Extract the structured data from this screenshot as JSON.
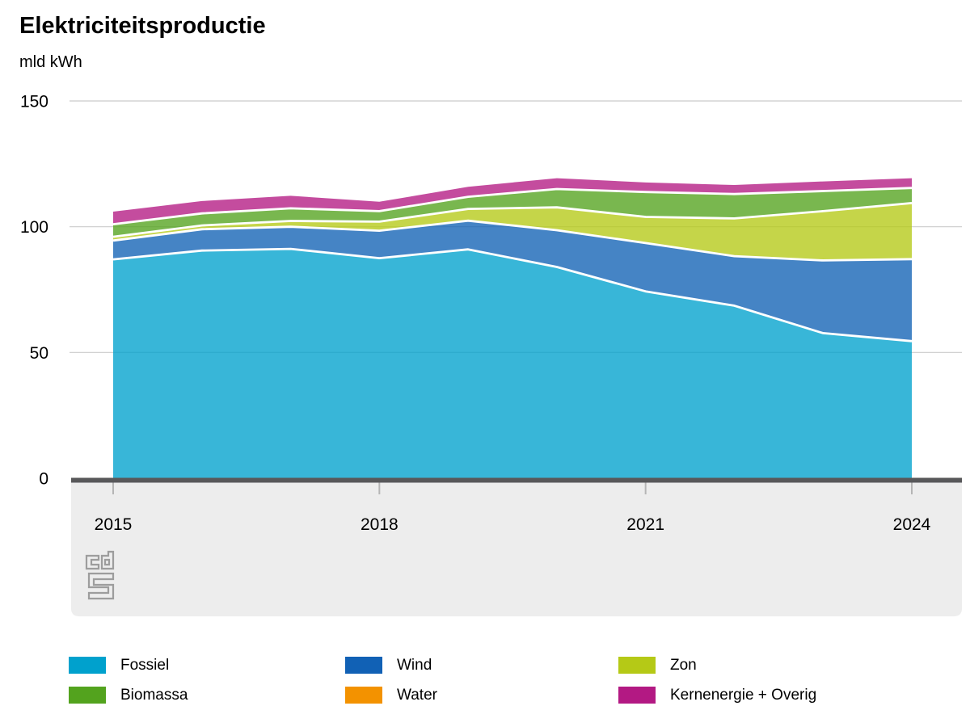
{
  "header": {
    "title": "Elektriciteitsproductie",
    "subtitle": "mld kWh"
  },
  "chart_data": {
    "type": "area",
    "stacked": true,
    "title": "Elektriciteitsproductie",
    "ylabel": "mld kWh",
    "xlabel": "",
    "grid": true,
    "ylim": [
      0,
      150
    ],
    "x": [
      2015,
      2016,
      2017,
      2018,
      2019,
      2020,
      2021,
      2022,
      2023,
      2024
    ],
    "x_ticks": [
      2015,
      2018,
      2021,
      2024
    ],
    "y_ticks": [
      150,
      100,
      50,
      0
    ],
    "series": [
      {
        "name": "Fossiel",
        "color": "#00A1CD",
        "values": [
          87.0,
          90.5,
          91.2,
          87.5,
          91.0,
          84.0,
          74.3,
          68.6,
          57.7,
          54.5
        ]
      },
      {
        "name": "Wind",
        "color": "#1161B5",
        "values": [
          7.5,
          8.5,
          8.8,
          10.9,
          11.4,
          14.6,
          19.2,
          19.7,
          28.9,
          32.6
        ]
      },
      {
        "name": "Zon",
        "color": "#B5C916",
        "values": [
          1.5,
          1.5,
          2.3,
          3.6,
          4.7,
          9.1,
          10.4,
          15.0,
          19.6,
          22.3
        ]
      },
      {
        "name": "Biomassa",
        "color": "#53A31E",
        "values": [
          5.0,
          4.8,
          5.0,
          4.2,
          4.8,
          7.3,
          9.9,
          9.7,
          8.0,
          6.0
        ]
      },
      {
        "name": "Water",
        "color": "#F39200",
        "values": [
          0.1,
          0.1,
          0.1,
          0.1,
          0.1,
          0.1,
          0.1,
          0.1,
          0.1,
          0.1
        ]
      },
      {
        "name": "Kernenergie + Overig",
        "color": "#B31983",
        "values": [
          4.9,
          4.8,
          4.9,
          3.6,
          3.9,
          4.2,
          3.7,
          3.5,
          3.7,
          3.8
        ]
      }
    ],
    "legend": [
      "Fossiel",
      "Wind",
      "Zon",
      "Biomassa",
      "Water",
      "Kernenergie + Overig"
    ],
    "legend_position": "bottom"
  },
  "style_colors": {
    "axis_line": "#58585A",
    "gridline": "#CBCBCB",
    "tick": "#B5B5B5",
    "plot_footer_background": "#EDEDED",
    "band_border": "#FFFFFF",
    "text": "#000000",
    "logo": "#9D9D9D"
  },
  "footer": {
    "logo": "cbs-logo"
  }
}
